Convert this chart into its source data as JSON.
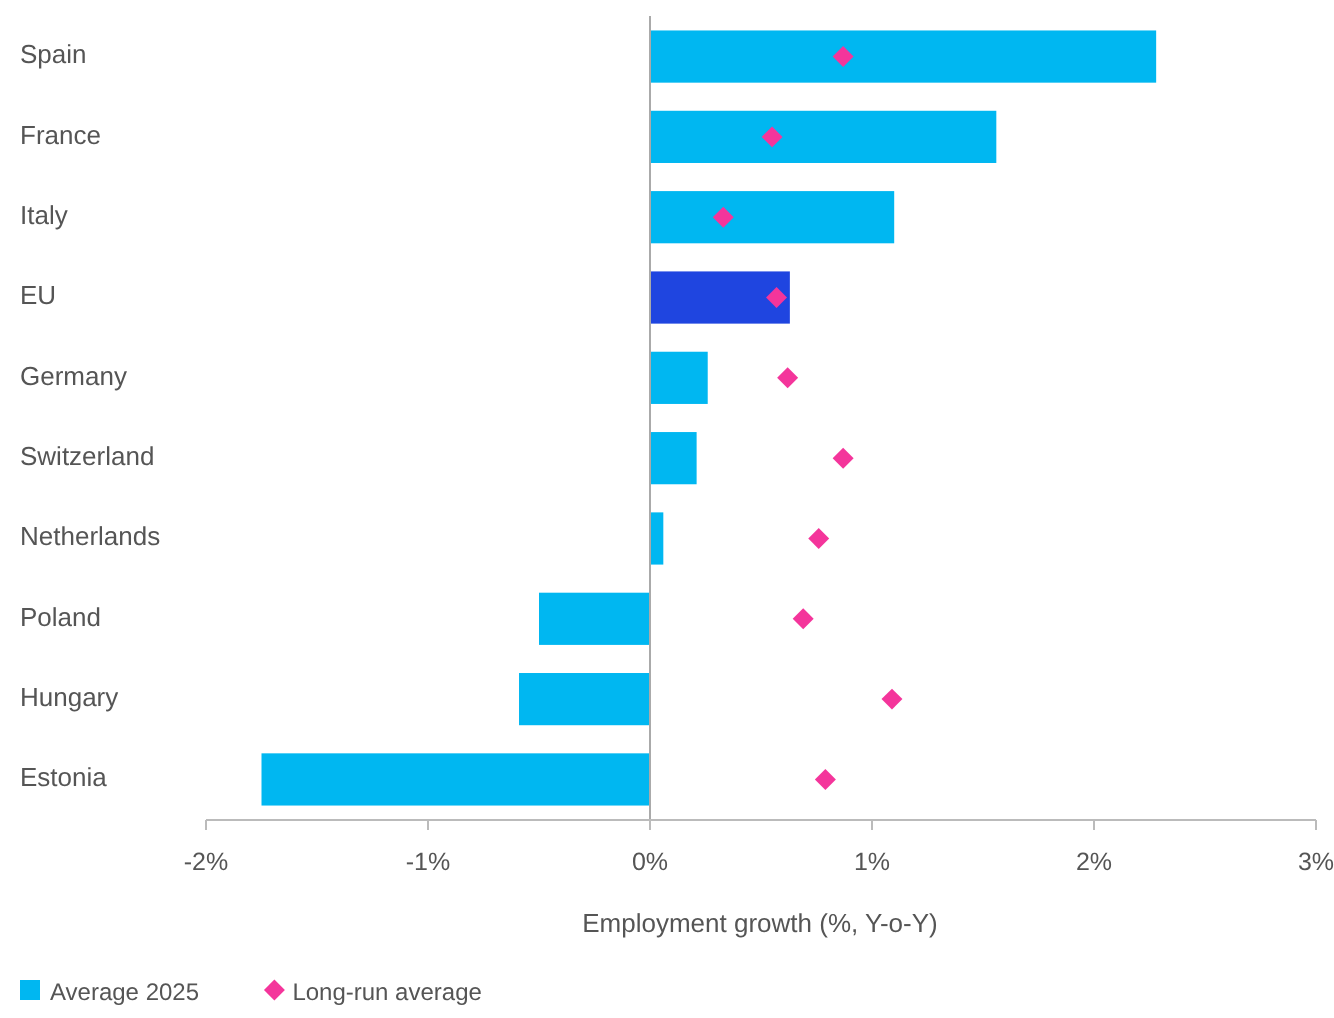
{
  "chart_data": {
    "type": "bar",
    "orientation": "horizontal",
    "xlabel": "Employment growth (%, Y-o-Y)",
    "categories": [
      "Spain",
      "France",
      "Italy",
      "EU",
      "Germany",
      "Switzerland",
      "Netherlands",
      "Poland",
      "Hungary",
      "Estonia"
    ],
    "series": [
      {
        "name": "Average 2025",
        "color": "#00b7f1",
        "colors": [
          "#00b7f1",
          "#00b7f1",
          "#00b7f1",
          "#1f45e0",
          "#00b7f1",
          "#00b7f1",
          "#00b7f1",
          "#00b7f1",
          "#00b7f1",
          "#00b7f1"
        ],
        "values": [
          2.28,
          1.56,
          1.1,
          0.63,
          0.26,
          0.21,
          0.06,
          -0.5,
          -0.59,
          -1.75
        ]
      },
      {
        "name": "Long-run average",
        "type": "scatter",
        "marker": "diamond",
        "color": "#f4359b",
        "x": [
          "Spain",
          "France",
          "Italy",
          "EU",
          "Germany",
          "Switzerland",
          "Netherlands",
          "Poland",
          "Hungary",
          "Estonia"
        ],
        "values": [
          0.87,
          0.55,
          0.33,
          0.57,
          0.62,
          0.87,
          0.76,
          0.69,
          1.09,
          0.79
        ]
      }
    ],
    "xlim": [
      -2,
      3
    ],
    "xticks": [
      {
        "value": -2,
        "label": "-2%"
      },
      {
        "value": -1,
        "label": "-1%"
      },
      {
        "value": 0,
        "label": "0%"
      },
      {
        "value": 1,
        "label": "1%"
      },
      {
        "value": 2,
        "label": "2%"
      },
      {
        "value": 3,
        "label": "3%"
      }
    ],
    "legend": "bottom left"
  }
}
